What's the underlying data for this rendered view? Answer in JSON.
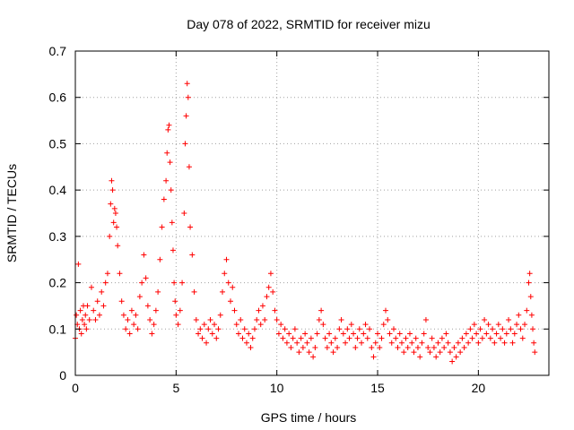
{
  "chart_data": {
    "type": "scatter",
    "title": "Day 078 of 2022, SRMTID for receiver mizu",
    "xlabel": "GPS time / hours",
    "ylabel": "SRMTID / TECUs",
    "xlim": [
      0,
      23.5
    ],
    "ylim": [
      0,
      0.7
    ],
    "xticks": [
      0,
      5,
      10,
      15,
      20
    ],
    "xtick_labels": [
      "0",
      "5",
      "10",
      "15",
      "20"
    ],
    "yticks": [
      0,
      0.1,
      0.2,
      0.3,
      0.4,
      0.5,
      0.6,
      0.7
    ],
    "ytick_labels": [
      "0",
      "0.1",
      "0.2",
      "0.3",
      "0.4",
      "0.5",
      "0.6",
      "0.7"
    ],
    "grid": true,
    "marker": "+",
    "color": "#ff0000",
    "series": [
      {
        "name": "SRMTID",
        "points": [
          [
            0.0,
            0.08
          ],
          [
            0.05,
            0.13
          ],
          [
            0.1,
            0.11
          ],
          [
            0.15,
            0.24
          ],
          [
            0.2,
            0.1
          ],
          [
            0.25,
            0.14
          ],
          [
            0.3,
            0.09
          ],
          [
            0.35,
            0.12
          ],
          [
            0.4,
            0.15
          ],
          [
            0.45,
            0.11
          ],
          [
            0.5,
            0.13
          ],
          [
            0.55,
            0.1
          ],
          [
            0.6,
            0.15
          ],
          [
            0.7,
            0.12
          ],
          [
            0.8,
            0.19
          ],
          [
            0.9,
            0.14
          ],
          [
            1.0,
            0.12
          ],
          [
            1.1,
            0.16
          ],
          [
            1.2,
            0.13
          ],
          [
            1.3,
            0.18
          ],
          [
            1.4,
            0.15
          ],
          [
            1.5,
            0.2
          ],
          [
            1.6,
            0.22
          ],
          [
            1.7,
            0.3
          ],
          [
            1.75,
            0.37
          ],
          [
            1.8,
            0.42
          ],
          [
            1.85,
            0.4
          ],
          [
            1.9,
            0.33
          ],
          [
            1.95,
            0.36
          ],
          [
            2.0,
            0.35
          ],
          [
            2.05,
            0.32
          ],
          [
            2.1,
            0.28
          ],
          [
            2.2,
            0.22
          ],
          [
            2.3,
            0.16
          ],
          [
            2.4,
            0.13
          ],
          [
            2.5,
            0.1
          ],
          [
            2.6,
            0.12
          ],
          [
            2.7,
            0.09
          ],
          [
            2.8,
            0.14
          ],
          [
            2.9,
            0.11
          ],
          [
            3.0,
            0.13
          ],
          [
            3.1,
            0.1
          ],
          [
            3.2,
            0.17
          ],
          [
            3.3,
            0.2
          ],
          [
            3.4,
            0.26
          ],
          [
            3.5,
            0.21
          ],
          [
            3.6,
            0.15
          ],
          [
            3.7,
            0.12
          ],
          [
            3.8,
            0.09
          ],
          [
            3.9,
            0.11
          ],
          [
            4.0,
            0.14
          ],
          [
            4.1,
            0.18
          ],
          [
            4.2,
            0.25
          ],
          [
            4.3,
            0.32
          ],
          [
            4.4,
            0.38
          ],
          [
            4.5,
            0.42
          ],
          [
            4.55,
            0.48
          ],
          [
            4.6,
            0.53
          ],
          [
            4.65,
            0.54
          ],
          [
            4.7,
            0.46
          ],
          [
            4.75,
            0.4
          ],
          [
            4.8,
            0.33
          ],
          [
            4.85,
            0.27
          ],
          [
            4.9,
            0.2
          ],
          [
            4.95,
            0.16
          ],
          [
            5.0,
            0.13
          ],
          [
            5.1,
            0.11
          ],
          [
            5.2,
            0.14
          ],
          [
            5.3,
            0.2
          ],
          [
            5.4,
            0.35
          ],
          [
            5.45,
            0.5
          ],
          [
            5.5,
            0.56
          ],
          [
            5.55,
            0.63
          ],
          [
            5.6,
            0.6
          ],
          [
            5.65,
            0.45
          ],
          [
            5.7,
            0.32
          ],
          [
            5.8,
            0.26
          ],
          [
            5.9,
            0.18
          ],
          [
            6.0,
            0.12
          ],
          [
            6.1,
            0.09
          ],
          [
            6.2,
            0.1
          ],
          [
            6.3,
            0.08
          ],
          [
            6.4,
            0.11
          ],
          [
            6.5,
            0.07
          ],
          [
            6.6,
            0.1
          ],
          [
            6.7,
            0.12
          ],
          [
            6.8,
            0.09
          ],
          [
            6.9,
            0.11
          ],
          [
            7.0,
            0.08
          ],
          [
            7.1,
            0.1
          ],
          [
            7.2,
            0.13
          ],
          [
            7.3,
            0.18
          ],
          [
            7.4,
            0.22
          ],
          [
            7.5,
            0.25
          ],
          [
            7.6,
            0.2
          ],
          [
            7.7,
            0.16
          ],
          [
            7.8,
            0.19
          ],
          [
            7.9,
            0.14
          ],
          [
            8.0,
            0.11
          ],
          [
            8.1,
            0.09
          ],
          [
            8.2,
            0.12
          ],
          [
            8.3,
            0.08
          ],
          [
            8.4,
            0.1
          ],
          [
            8.5,
            0.07
          ],
          [
            8.6,
            0.09
          ],
          [
            8.7,
            0.06
          ],
          [
            8.8,
            0.08
          ],
          [
            8.9,
            0.1
          ],
          [
            9.0,
            0.12
          ],
          [
            9.1,
            0.14
          ],
          [
            9.2,
            0.11
          ],
          [
            9.3,
            0.15
          ],
          [
            9.4,
            0.12
          ],
          [
            9.5,
            0.17
          ],
          [
            9.6,
            0.19
          ],
          [
            9.7,
            0.22
          ],
          [
            9.8,
            0.18
          ],
          [
            9.9,
            0.14
          ],
          [
            10.0,
            0.12
          ],
          [
            10.1,
            0.09
          ],
          [
            10.2,
            0.11
          ],
          [
            10.3,
            0.08
          ],
          [
            10.4,
            0.1
          ],
          [
            10.5,
            0.07
          ],
          [
            10.6,
            0.09
          ],
          [
            10.7,
            0.06
          ],
          [
            10.8,
            0.08
          ],
          [
            10.9,
            0.1
          ],
          [
            11.0,
            0.07
          ],
          [
            11.1,
            0.05
          ],
          [
            11.2,
            0.08
          ],
          [
            11.3,
            0.06
          ],
          [
            11.4,
            0.09
          ],
          [
            11.5,
            0.07
          ],
          [
            11.6,
            0.05
          ],
          [
            11.7,
            0.08
          ],
          [
            11.8,
            0.04
          ],
          [
            11.9,
            0.06
          ],
          [
            12.0,
            0.09
          ],
          [
            12.1,
            0.12
          ],
          [
            12.2,
            0.14
          ],
          [
            12.3,
            0.11
          ],
          [
            12.4,
            0.08
          ],
          [
            12.5,
            0.06
          ],
          [
            12.6,
            0.09
          ],
          [
            12.7,
            0.07
          ],
          [
            12.8,
            0.05
          ],
          [
            12.9,
            0.08
          ],
          [
            13.0,
            0.06
          ],
          [
            13.1,
            0.1
          ],
          [
            13.2,
            0.12
          ],
          [
            13.3,
            0.09
          ],
          [
            13.4,
            0.07
          ],
          [
            13.5,
            0.1
          ],
          [
            13.6,
            0.08
          ],
          [
            13.7,
            0.11
          ],
          [
            13.8,
            0.09
          ],
          [
            13.9,
            0.06
          ],
          [
            14.0,
            0.08
          ],
          [
            14.1,
            0.1
          ],
          [
            14.2,
            0.07
          ],
          [
            14.3,
            0.09
          ],
          [
            14.4,
            0.11
          ],
          [
            14.5,
            0.08
          ],
          [
            14.6,
            0.1
          ],
          [
            14.7,
            0.06
          ],
          [
            14.8,
            0.04
          ],
          [
            14.9,
            0.07
          ],
          [
            15.0,
            0.09
          ],
          [
            15.1,
            0.06
          ],
          [
            15.2,
            0.08
          ],
          [
            15.3,
            0.11
          ],
          [
            15.4,
            0.14
          ],
          [
            15.5,
            0.12
          ],
          [
            15.6,
            0.09
          ],
          [
            15.7,
            0.07
          ],
          [
            15.8,
            0.1
          ],
          [
            15.9,
            0.08
          ],
          [
            16.0,
            0.06
          ],
          [
            16.1,
            0.09
          ],
          [
            16.2,
            0.07
          ],
          [
            16.3,
            0.05
          ],
          [
            16.4,
            0.08
          ],
          [
            16.5,
            0.06
          ],
          [
            16.6,
            0.09
          ],
          [
            16.7,
            0.07
          ],
          [
            16.8,
            0.05
          ],
          [
            16.9,
            0.08
          ],
          [
            17.0,
            0.06
          ],
          [
            17.1,
            0.04
          ],
          [
            17.2,
            0.07
          ],
          [
            17.3,
            0.09
          ],
          [
            17.4,
            0.12
          ],
          [
            17.5,
            0.06
          ],
          [
            17.6,
            0.05
          ],
          [
            17.7,
            0.08
          ],
          [
            17.8,
            0.06
          ],
          [
            17.9,
            0.04
          ],
          [
            18.0,
            0.07
          ],
          [
            18.1,
            0.05
          ],
          [
            18.2,
            0.08
          ],
          [
            18.3,
            0.06
          ],
          [
            18.4,
            0.09
          ],
          [
            18.5,
            0.07
          ],
          [
            18.6,
            0.05
          ],
          [
            18.7,
            0.03
          ],
          [
            18.8,
            0.06
          ],
          [
            18.9,
            0.04
          ],
          [
            19.0,
            0.07
          ],
          [
            19.1,
            0.05
          ],
          [
            19.2,
            0.08
          ],
          [
            19.3,
            0.06
          ],
          [
            19.4,
            0.09
          ],
          [
            19.5,
            0.07
          ],
          [
            19.6,
            0.1
          ],
          [
            19.7,
            0.08
          ],
          [
            19.8,
            0.11
          ],
          [
            19.9,
            0.09
          ],
          [
            20.0,
            0.07
          ],
          [
            20.1,
            0.1
          ],
          [
            20.2,
            0.08
          ],
          [
            20.3,
            0.12
          ],
          [
            20.4,
            0.09
          ],
          [
            20.5,
            0.11
          ],
          [
            20.6,
            0.08
          ],
          [
            20.7,
            0.1
          ],
          [
            20.8,
            0.07
          ],
          [
            20.9,
            0.09
          ],
          [
            21.0,
            0.11
          ],
          [
            21.1,
            0.08
          ],
          [
            21.2,
            0.1
          ],
          [
            21.3,
            0.07
          ],
          [
            21.4,
            0.09
          ],
          [
            21.5,
            0.12
          ],
          [
            21.6,
            0.1
          ],
          [
            21.7,
            0.07
          ],
          [
            21.8,
            0.09
          ],
          [
            21.9,
            0.11
          ],
          [
            22.0,
            0.13
          ],
          [
            22.1,
            0.1
          ],
          [
            22.2,
            0.08
          ],
          [
            22.3,
            0.11
          ],
          [
            22.4,
            0.14
          ],
          [
            22.5,
            0.2
          ],
          [
            22.55,
            0.22
          ],
          [
            22.6,
            0.17
          ],
          [
            22.65,
            0.13
          ],
          [
            22.7,
            0.1
          ],
          [
            22.75,
            0.07
          ],
          [
            22.8,
            0.05
          ]
        ]
      }
    ]
  }
}
